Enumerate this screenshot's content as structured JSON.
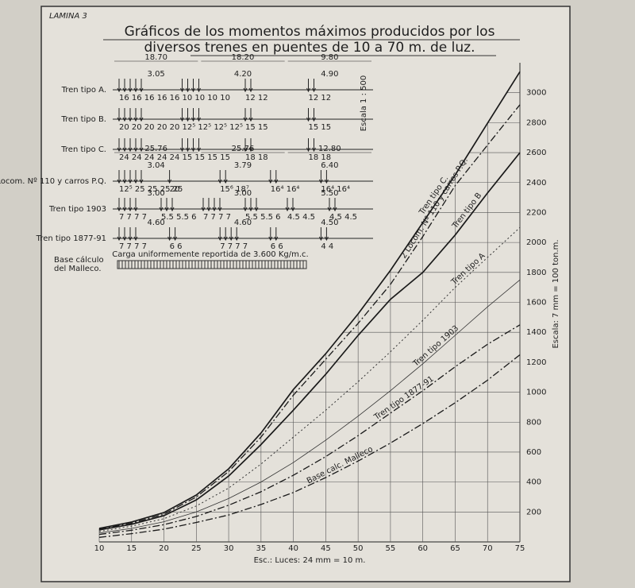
{
  "sheet_label": "LAMINA 3",
  "chart_data": {
    "type": "line",
    "title": "Gráficos de los momentos máximos producidos por los",
    "subtitle": "diversos trenes en puentes de 10 a 70 m. de luz.",
    "x_label": "Esc.: Luces: 24 mm = 10 m.",
    "y_label": "Escala: 7 mm = 100 ton.m.",
    "x": [
      10,
      15,
      20,
      25,
      30,
      35,
      40,
      45,
      50,
      55,
      60,
      65,
      70,
      75
    ],
    "xlim": [
      10,
      75
    ],
    "xticks": [
      10,
      15,
      20,
      25,
      30,
      35,
      40,
      45,
      50,
      55,
      60,
      65,
      70,
      75
    ],
    "ylim": [
      0,
      3200
    ],
    "yticks": [
      200,
      400,
      600,
      800,
      1000,
      1200,
      1400,
      1600,
      1800,
      2000,
      2200,
      2400,
      2600,
      2800,
      3000
    ],
    "grid": true,
    "series": [
      {
        "name": "Tren tipo C.",
        "color": "#1a1a1a",
        "style": "solid",
        "values": [
          90,
          133,
          196,
          313,
          488,
          727,
          1018,
          1257,
          1523,
          1814,
          2133,
          2451,
          2796,
          3140
        ]
      },
      {
        "name": "2 Locom. Nº 110 y carros P.Q.",
        "color": "#1a1a1a",
        "style": "dashdot",
        "values": [
          85,
          125,
          185,
          300,
          470,
          700,
          980,
          1220,
          1460,
          1720,
          2040,
          2380,
          2650,
          2920
        ]
      },
      {
        "name": "Tren tipo B",
        "color": "#1a1a1a",
        "style": "solid",
        "values": [
          80,
          118,
          175,
          280,
          440,
          650,
          880,
          1120,
          1380,
          1620,
          1800,
          2050,
          2330,
          2600
        ]
      },
      {
        "name": "Tren tipo A",
        "color": "#333333",
        "style": "dotted",
        "values": [
          70,
          105,
          155,
          240,
          360,
          520,
          700,
          880,
          1070,
          1270,
          1480,
          1700,
          1900,
          2100
        ]
      },
      {
        "name": "Tren tipo 1903",
        "color": "#333333",
        "style": "thin",
        "values": [
          60,
          90,
          135,
          200,
          290,
          400,
          530,
          680,
          840,
          1010,
          1190,
          1380,
          1570,
          1750
        ]
      },
      {
        "name": "Tren tipo 1877-91",
        "color": "#1a1a1a",
        "style": "dashdot",
        "values": [
          50,
          78,
          115,
          170,
          245,
          335,
          445,
          570,
          710,
          860,
          1010,
          1170,
          1320,
          1450
        ]
      },
      {
        "name": "Base calc. Malleco",
        "color": "#1a1a1a",
        "style": "dashdot",
        "values": [
          30,
          55,
          85,
          130,
          180,
          250,
          330,
          430,
          540,
          660,
          790,
          930,
          1080,
          1250
        ]
      }
    ]
  },
  "trains": [
    {
      "name": "Tren tipo A.",
      "dims": [
        "18.70",
        "18.20",
        "9.80"
      ],
      "gaps": [
        "3.05",
        "4.20",
        "4.90"
      ],
      "loads": [
        "16 16 16 16 16",
        "10 10 10 10",
        "12 12",
        "12 12"
      ]
    },
    {
      "name": "Tren tipo B.",
      "dims": [],
      "gaps": [],
      "loads": [
        "20 20 20 20 20",
        "12⁵ 12⁵ 12⁵ 12⁵",
        "15 15",
        "15 15"
      ]
    },
    {
      "name": "Tren tipo C.",
      "dims": [],
      "gaps": [],
      "loads": [
        "24 24 24 24 24",
        "15 15 15 15",
        "18 18",
        "18 18"
      ]
    },
    {
      "name": "2 Locom. Nº 110 y carros P.Q.",
      "dims": [
        "25.76",
        "25.76",
        "12.80"
      ],
      "gaps": [
        "3.04",
        "3.79",
        "6.40"
      ],
      "loads": [
        "12⁵ 25 25 25 25",
        "20",
        "15⁶ 18⁷",
        "16⁴ 16⁴",
        "16⁴ 16⁴"
      ]
    },
    {
      "name": "Tren tipo 1903",
      "dims": [],
      "gaps": [
        "3.00",
        "3.00",
        "5.50"
      ],
      "loads": [
        "7 7 7 7",
        "5.5 5.5 6",
        "7 7 7 7",
        "5.5 5.5 6",
        "4.5 4.5",
        "4.5 4.5"
      ]
    },
    {
      "name": "Tren tipo 1877-91",
      "dims": [],
      "gaps": [
        "4.60",
        "4.60",
        "4.50"
      ],
      "loads": [
        "7 7 7 7",
        "6 6",
        "7 7 7 7",
        "6 6",
        "4 4"
      ]
    }
  ],
  "scale_note": "Escala 1 : 500",
  "base_note": "Carga uniformemente reportida de 3.600 Kg/m.c.",
  "base_label": [
    "Base cálculo",
    "del Malleco."
  ]
}
